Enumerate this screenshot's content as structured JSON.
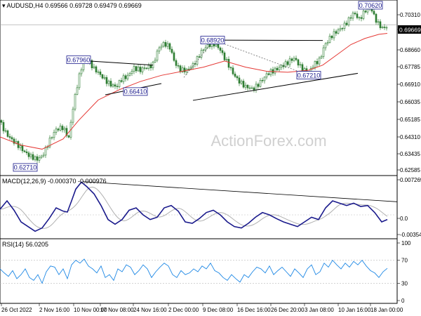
{
  "header": {
    "symbol": "AUDUSD,H4",
    "ohlc": "0.69566 0.69728 0.69479 0.69669",
    "macd_label": "MACD(12,26,9) -0.000370 -0.000976",
    "rsi_label": "RSI(14) 56.0205"
  },
  "watermark": "ActionForex.com",
  "colors": {
    "candle": "#2e7d32",
    "ema_red": "#e53935",
    "macd_line": "#1a1a8c",
    "signal_line": "#b0b0b0",
    "rsi_line": "#1e88e5",
    "trendline": "#000000",
    "label_border": "#1a1a8c"
  },
  "chart_data": [
    {
      "type": "candlestick",
      "name": "price",
      "y_ticks": [
        "0.70310",
        "0.69669",
        "0.68660",
        "0.67785",
        "0.66910",
        "0.66035",
        "0.65185",
        "0.64310",
        "0.63435",
        "0.62585"
      ],
      "ylim": [
        0.6245,
        0.7067
      ],
      "x_ticks": [
        "26 Oct 2022",
        "2 Nov 16:00",
        "10 Nov 00:00",
        "17 Nov 08:00",
        "24 Nov 16:00",
        "2 Dec 00:00",
        "9 Dec 08:00",
        "16 Dec 16:00",
        "26 Dec 20:00",
        "3 Jan 08:00",
        "10 Jan 16:00",
        "18 Jan 00:00"
      ],
      "price_path": [
        [
          0,
          0.65
        ],
        [
          10,
          0.643
        ],
        [
          18,
          0.6395
        ],
        [
          30,
          0.637
        ],
        [
          44,
          0.632
        ],
        [
          52,
          0.6305
        ],
        [
          60,
          0.633
        ],
        [
          70,
          0.64
        ],
        [
          80,
          0.645
        ],
        [
          90,
          0.647
        ],
        [
          98,
          0.642
        ],
        [
          104,
          0.656
        ],
        [
          112,
          0.67
        ],
        [
          118,
          0.678
        ],
        [
          126,
          0.68
        ],
        [
          134,
          0.675
        ],
        [
          142,
          0.672
        ],
        [
          150,
          0.67
        ],
        [
          158,
          0.668
        ],
        [
          166,
          0.666
        ],
        [
          174,
          0.67
        ],
        [
          182,
          0.672
        ],
        [
          190,
          0.676
        ],
        [
          200,
          0.674
        ],
        [
          210,
          0.676
        ],
        [
          218,
          0.678
        ],
        [
          226,
          0.685
        ],
        [
          234,
          0.687
        ],
        [
          242,
          0.686
        ],
        [
          250,
          0.678
        ],
        [
          258,
          0.674
        ],
        [
          266,
          0.674
        ],
        [
          276,
          0.678
        ],
        [
          286,
          0.683
        ],
        [
          296,
          0.686
        ],
        [
          304,
          0.688
        ],
        [
          312,
          0.686
        ],
        [
          320,
          0.68
        ],
        [
          330,
          0.674
        ],
        [
          340,
          0.67
        ],
        [
          350,
          0.666
        ],
        [
          360,
          0.665
        ],
        [
          370,
          0.669
        ],
        [
          380,
          0.672
        ],
        [
          390,
          0.674
        ],
        [
          400,
          0.677
        ],
        [
          410,
          0.678
        ],
        [
          420,
          0.68
        ],
        [
          430,
          0.676
        ],
        [
          440,
          0.673
        ],
        [
          448,
          0.677
        ],
        [
          456,
          0.68
        ],
        [
          462,
          0.687
        ],
        [
          470,
          0.69
        ],
        [
          480,
          0.693
        ],
        [
          488,
          0.696
        ],
        [
          496,
          0.699
        ],
        [
          504,
          0.702
        ],
        [
          512,
          0.699
        ],
        [
          520,
          0.704
        ],
        [
          528,
          0.706
        ],
        [
          534,
          0.6995
        ],
        [
          540,
          0.696
        ],
        [
          546,
          0.695
        ],
        [
          552,
          0.6967
        ]
      ],
      "ema_path": [
        [
          0,
          0.642
        ],
        [
          30,
          0.638
        ],
        [
          60,
          0.636
        ],
        [
          90,
          0.641
        ],
        [
          112,
          0.65
        ],
        [
          140,
          0.66
        ],
        [
          170,
          0.665
        ],
        [
          200,
          0.669
        ],
        [
          230,
          0.672
        ],
        [
          260,
          0.674
        ],
        [
          290,
          0.676
        ],
        [
          320,
          0.679
        ],
        [
          350,
          0.676
        ],
        [
          380,
          0.674
        ],
        [
          410,
          0.6735
        ],
        [
          440,
          0.6745
        ],
        [
          460,
          0.677
        ],
        [
          480,
          0.682
        ],
        [
          500,
          0.687
        ],
        [
          520,
          0.69
        ],
        [
          540,
          0.692
        ],
        [
          552,
          0.6925
        ]
      ],
      "trendlines": [
        {
          "from": [
            100,
            0.6796
          ],
          "to": [
            218,
            0.677
          ]
        },
        {
          "from": [
            150,
            0.6625
          ],
          "to": [
            230,
            0.668
          ]
        },
        {
          "from": [
            275,
            0.6598
          ],
          "to": [
            510,
            0.673
          ]
        },
        {
          "from": [
            305,
            0.6892
          ],
          "to": [
            460,
            0.689
          ]
        }
      ],
      "dotted_lines": [
        {
          "from": [
            262,
            0.671
          ],
          "to": [
            305,
            0.6892
          ]
        },
        {
          "from": [
            305,
            0.6892
          ],
          "to": [
            440,
            0.6721
          ]
        }
      ],
      "labels": [
        {
          "text": "0.70620",
          "x": 528,
          "y": 0.7062
        },
        {
          "text": "0.68920",
          "x": 303,
          "y": 0.6892
        },
        {
          "text": "0.67960",
          "x": 112,
          "y": 0.6796
        },
        {
          "text": "0.66410",
          "x": 193,
          "y": 0.6641
        },
        {
          "text": "0.67210",
          "x": 440,
          "y": 0.6721
        },
        {
          "text": "0.62710",
          "x": 36,
          "y": 0.6271
        }
      ],
      "current_price": 0.69669
    },
    {
      "type": "line",
      "name": "macd",
      "y_ticks": [
        "0.007269",
        "0.0",
        "-0.003542"
      ],
      "ylim": [
        -0.0045,
        0.0078
      ],
      "macd_path": [
        [
          0,
          0.0012
        ],
        [
          10,
          0.003
        ],
        [
          20,
          0.001
        ],
        [
          30,
          -0.0015
        ],
        [
          40,
          -0.0025
        ],
        [
          50,
          -0.0035
        ],
        [
          60,
          -0.0028
        ],
        [
          70,
          -0.0008
        ],
        [
          80,
          0.0015
        ],
        [
          90,
          0.0008
        ],
        [
          96,
          0.0006
        ],
        [
          102,
          0.003
        ],
        [
          108,
          0.0055
        ],
        [
          116,
          0.007
        ],
        [
          124,
          0.006
        ],
        [
          134,
          0.0045
        ],
        [
          144,
          0.002
        ],
        [
          154,
          -0.001
        ],
        [
          164,
          -0.002
        ],
        [
          174,
          -0.001
        ],
        [
          184,
          0.001
        ],
        [
          194,
          0.0015
        ],
        [
          204,
          0.0
        ],
        [
          214,
          -0.001
        ],
        [
          224,
          -0.0005
        ],
        [
          234,
          0.0015
        ],
        [
          244,
          0.002
        ],
        [
          254,
          0.0008
        ],
        [
          264,
          -0.0015
        ],
        [
          274,
          -0.0018
        ],
        [
          284,
          -0.0008
        ],
        [
          294,
          0.0005
        ],
        [
          304,
          0.001
        ],
        [
          314,
          0.0
        ],
        [
          324,
          -0.0015
        ],
        [
          334,
          -0.0025
        ],
        [
          344,
          -0.0028
        ],
        [
          354,
          -0.0018
        ],
        [
          364,
          -0.0005
        ],
        [
          374,
          0.0005
        ],
        [
          384,
          0.0
        ],
        [
          394,
          -0.0008
        ],
        [
          404,
          -0.0015
        ],
        [
          414,
          -0.002
        ],
        [
          424,
          -0.0025
        ],
        [
          434,
          -0.0015
        ],
        [
          444,
          -0.0005
        ],
        [
          454,
          -0.001
        ],
        [
          464,
          0.0015
        ],
        [
          474,
          0.003
        ],
        [
          484,
          0.0025
        ],
        [
          494,
          0.002
        ],
        [
          504,
          0.0025
        ],
        [
          514,
          0.0018
        ],
        [
          524,
          0.002
        ],
        [
          534,
          0.0005
        ],
        [
          544,
          -0.0015
        ],
        [
          552,
          -0.001
        ]
      ],
      "trendlines": [
        {
          "from": [
            118,
            0.0071
          ],
          "to": [
            566,
            0.0028
          ]
        }
      ]
    },
    {
      "type": "line",
      "name": "rsi",
      "y_ticks": [
        "100",
        "70",
        "30",
        "0"
      ],
      "ylim": [
        0,
        100
      ],
      "rsi_path": [
        [
          0,
          55
        ],
        [
          6,
          48
        ],
        [
          12,
          42
        ],
        [
          18,
          52
        ],
        [
          24,
          38
        ],
        [
          30,
          45
        ],
        [
          36,
          55
        ],
        [
          42,
          40
        ],
        [
          48,
          35
        ],
        [
          54,
          45
        ],
        [
          60,
          30
        ],
        [
          66,
          50
        ],
        [
          72,
          60
        ],
        [
          78,
          58
        ],
        [
          84,
          45
        ],
        [
          90,
          55
        ],
        [
          96,
          38
        ],
        [
          102,
          62
        ],
        [
          108,
          70
        ],
        [
          114,
          65
        ],
        [
          120,
          72
        ],
        [
          126,
          60
        ],
        [
          132,
          55
        ],
        [
          138,
          48
        ],
        [
          144,
          60
        ],
        [
          150,
          40
        ],
        [
          156,
          45
        ],
        [
          162,
          35
        ],
        [
          168,
          55
        ],
        [
          174,
          50
        ],
        [
          180,
          62
        ],
        [
          186,
          58
        ],
        [
          192,
          45
        ],
        [
          198,
          52
        ],
        [
          204,
          62
        ],
        [
          210,
          55
        ],
        [
          216,
          40
        ],
        [
          222,
          50
        ],
        [
          228,
          58
        ],
        [
          234,
          65
        ],
        [
          240,
          60
        ],
        [
          246,
          45
        ],
        [
          252,
          40
        ],
        [
          258,
          52
        ],
        [
          264,
          45
        ],
        [
          270,
          48
        ],
        [
          276,
          55
        ],
        [
          282,
          50
        ],
        [
          288,
          60
        ],
        [
          294,
          55
        ],
        [
          300,
          65
        ],
        [
          306,
          52
        ],
        [
          312,
          48
        ],
        [
          318,
          40
        ],
        [
          324,
          35
        ],
        [
          330,
          45
        ],
        [
          336,
          38
        ],
        [
          342,
          32
        ],
        [
          348,
          45
        ],
        [
          354,
          40
        ],
        [
          360,
          50
        ],
        [
          366,
          58
        ],
        [
          372,
          55
        ],
        [
          378,
          48
        ],
        [
          384,
          60
        ],
        [
          390,
          45
        ],
        [
          396,
          52
        ],
        [
          402,
          58
        ],
        [
          408,
          50
        ],
        [
          414,
          42
        ],
        [
          420,
          55
        ],
        [
          426,
          48
        ],
        [
          432,
          40
        ],
        [
          438,
          55
        ],
        [
          444,
          62
        ],
        [
          450,
          45
        ],
        [
          456,
          50
        ],
        [
          462,
          65
        ],
        [
          468,
          58
        ],
        [
          474,
          70
        ],
        [
          480,
          62
        ],
        [
          486,
          55
        ],
        [
          492,
          65
        ],
        [
          498,
          58
        ],
        [
          504,
          68
        ],
        [
          510,
          62
        ],
        [
          516,
          70
        ],
        [
          522,
          60
        ],
        [
          528,
          52
        ],
        [
          534,
          48
        ],
        [
          540,
          40
        ],
        [
          546,
          50
        ],
        [
          552,
          56
        ]
      ],
      "levels": [
        70,
        30
      ]
    }
  ]
}
